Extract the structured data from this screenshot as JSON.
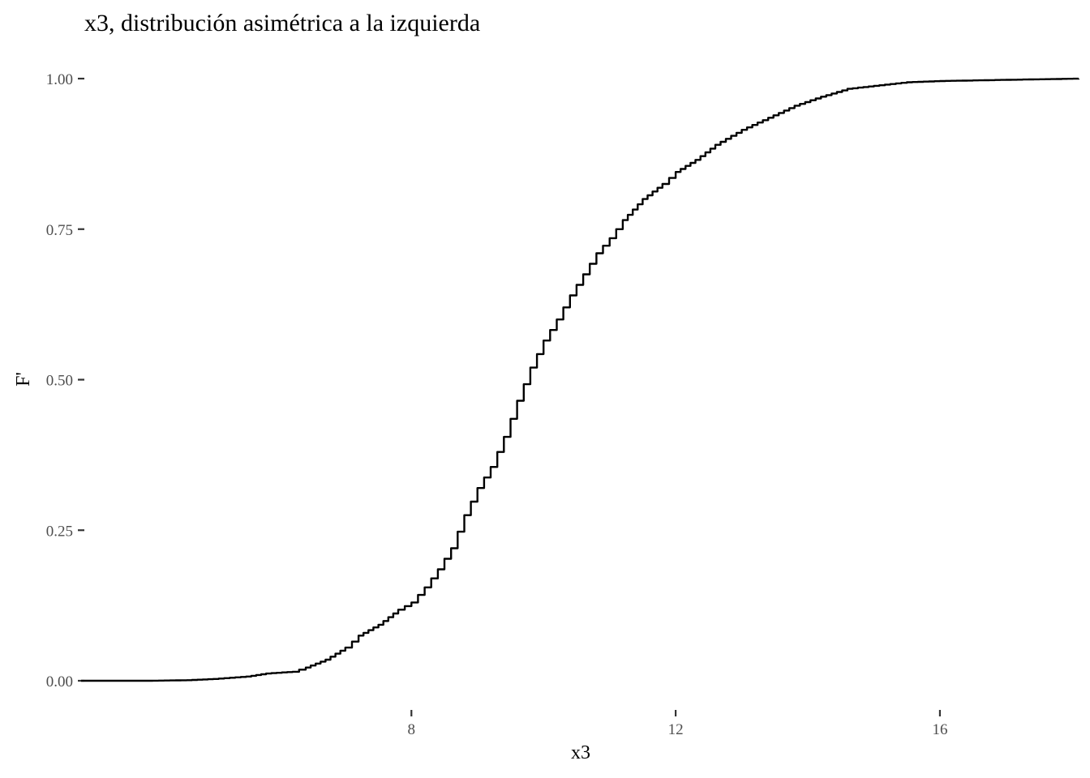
{
  "chart_data": {
    "type": "line",
    "title": "x3, distribución asimétrica a la izquierda",
    "xlabel": "x3",
    "ylabel": "F'",
    "xlim": [
      3.0,
      18.1
    ],
    "ylim": [
      0.0,
      1.0
    ],
    "x_ticks": [
      8,
      12,
      16
    ],
    "y_ticks": [
      0.0,
      0.25,
      0.5,
      0.75,
      1.0
    ],
    "x_tick_labels": [
      "8",
      "12",
      "16"
    ],
    "y_tick_labels": [
      "0.00",
      "0.25",
      "0.50",
      "0.75",
      "1.00"
    ],
    "grid": false,
    "series": [
      {
        "points": [
          [
            3.0,
            0.0
          ],
          [
            4.0,
            0.0
          ],
          [
            4.6,
            0.001
          ],
          [
            5.0,
            0.003
          ],
          [
            5.5,
            0.007
          ],
          [
            5.8,
            0.012
          ],
          [
            6.2,
            0.015
          ],
          [
            6.4,
            0.022
          ],
          [
            6.7,
            0.035
          ],
          [
            7.0,
            0.055
          ],
          [
            7.2,
            0.075
          ],
          [
            7.5,
            0.093
          ],
          [
            7.8,
            0.118
          ],
          [
            8.0,
            0.13
          ],
          [
            8.2,
            0.155
          ],
          [
            8.4,
            0.185
          ],
          [
            8.6,
            0.22
          ],
          [
            8.8,
            0.275
          ],
          [
            9.0,
            0.32
          ],
          [
            9.2,
            0.355
          ],
          [
            9.4,
            0.405
          ],
          [
            9.6,
            0.465
          ],
          [
            9.8,
            0.52
          ],
          [
            10.0,
            0.565
          ],
          [
            10.2,
            0.6
          ],
          [
            10.4,
            0.64
          ],
          [
            10.6,
            0.675
          ],
          [
            10.8,
            0.71
          ],
          [
            11.0,
            0.735
          ],
          [
            11.2,
            0.765
          ],
          [
            11.5,
            0.8
          ],
          [
            11.8,
            0.825
          ],
          [
            12.0,
            0.845
          ],
          [
            12.3,
            0.865
          ],
          [
            12.6,
            0.89
          ],
          [
            13.0,
            0.915
          ],
          [
            13.4,
            0.935
          ],
          [
            13.8,
            0.955
          ],
          [
            14.2,
            0.97
          ],
          [
            14.6,
            0.983
          ],
          [
            15.0,
            0.988
          ],
          [
            15.5,
            0.994
          ],
          [
            16.0,
            0.996
          ],
          [
            17.0,
            0.998
          ],
          [
            18.1,
            1.0
          ]
        ]
      }
    ]
  }
}
